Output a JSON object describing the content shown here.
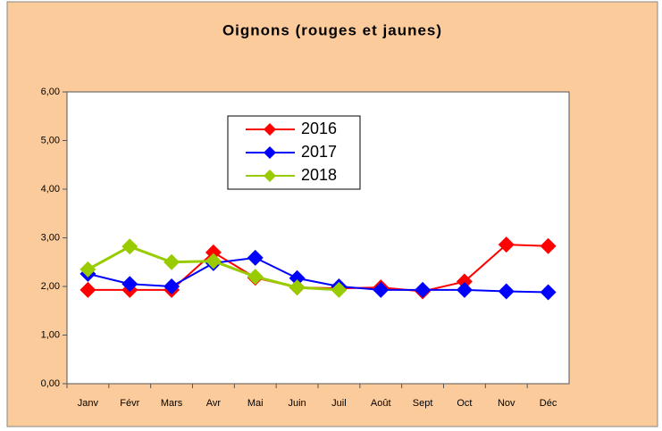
{
  "chart_data": {
    "type": "line",
    "title": "Oignons (rouges et jaunes)",
    "categories": [
      "Janv",
      "Févr",
      "Mars",
      "Avr",
      "Mai",
      "Juin",
      "Juil",
      "Août",
      "Sept",
      "Oct",
      "Nov",
      "Déc"
    ],
    "series": [
      {
        "name": "2016",
        "color": "#ff0000",
        "values": [
          1.93,
          1.93,
          1.93,
          2.7,
          2.18,
          1.98,
          1.96,
          1.98,
          1.9,
          2.1,
          2.86,
          2.83
        ]
      },
      {
        "name": "2017",
        "color": "#0000ff",
        "values": [
          2.26,
          2.05,
          2.0,
          2.48,
          2.59,
          2.17,
          2.0,
          1.93,
          1.93,
          1.93,
          1.9,
          1.88
        ]
      },
      {
        "name": "2018",
        "color": "#99cc00",
        "values": [
          2.35,
          2.82,
          2.5,
          2.52,
          2.2,
          1.98,
          1.93,
          null,
          null,
          null,
          null,
          null
        ]
      }
    ],
    "ylim": [
      0,
      6
    ],
    "yticks": [
      {
        "value": 0,
        "label": "0,00"
      },
      {
        "value": 1,
        "label": "1,00"
      },
      {
        "value": 2,
        "label": "2,00"
      },
      {
        "value": 3,
        "label": "3,00"
      },
      {
        "value": 4,
        "label": "4,00"
      },
      {
        "value": 5,
        "label": "5,00"
      },
      {
        "value": 6,
        "label": "6,00"
      }
    ],
    "grid": false,
    "legend": "top-left"
  }
}
